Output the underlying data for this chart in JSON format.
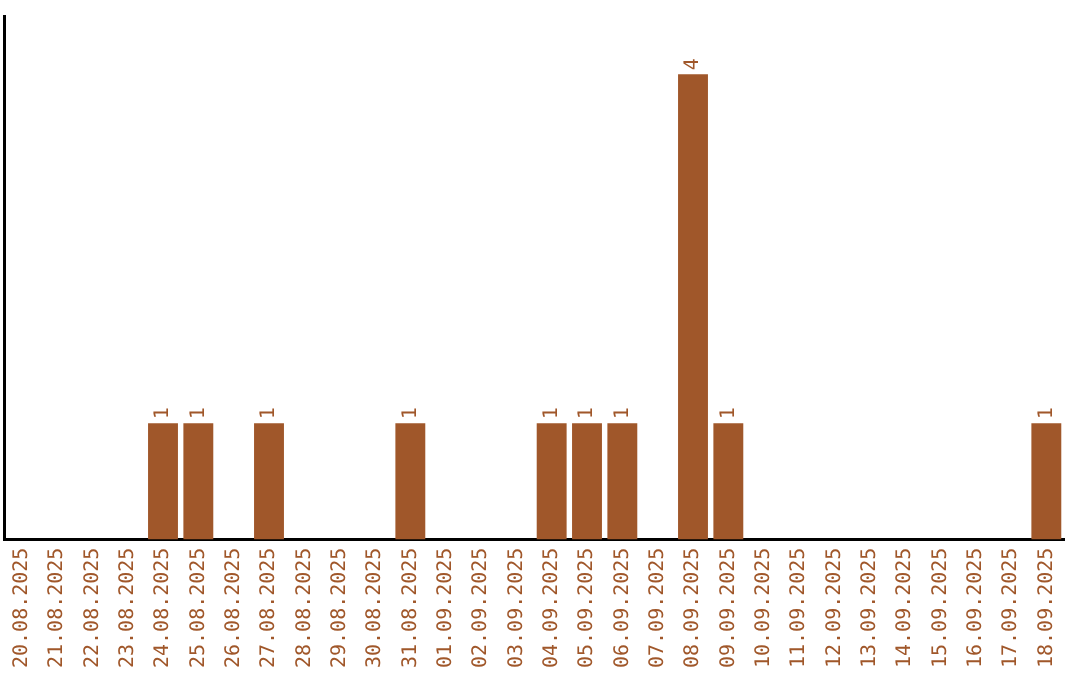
{
  "chart_data": {
    "type": "bar",
    "categories": [
      "20.08.2025",
      "21.08.2025",
      "22.08.2025",
      "23.08.2025",
      "24.08.2025",
      "25.08.2025",
      "26.08.2025",
      "27.08.2025",
      "28.08.2025",
      "29.08.2025",
      "30.08.2025",
      "31.08.2025",
      "01.09.2025",
      "02.09.2025",
      "03.09.2025",
      "04.09.2025",
      "05.09.2025",
      "06.09.2025",
      "07.09.2025",
      "08.09.2025",
      "09.09.2025",
      "10.09.2025",
      "11.09.2025",
      "12.09.2025",
      "13.09.2025",
      "14.09.2025",
      "15.09.2025",
      "16.09.2025",
      "17.09.2025",
      "18.09.2025"
    ],
    "values": [
      0,
      0,
      0,
      0,
      1,
      1,
      0,
      1,
      0,
      0,
      0,
      1,
      0,
      0,
      0,
      1,
      1,
      1,
      0,
      4,
      1,
      0,
      0,
      0,
      0,
      0,
      0,
      0,
      0,
      1
    ],
    "value_labels": [
      null,
      null,
      null,
      null,
      "1",
      "1",
      null,
      "1",
      null,
      null,
      null,
      "1",
      null,
      null,
      null,
      "1",
      "1",
      "1",
      null,
      "4",
      "1",
      null,
      null,
      null,
      null,
      null,
      null,
      null,
      null,
      "1"
    ],
    "color": "#a0572a",
    "tick_labels": "x",
    "grid": false,
    "legend": false
  }
}
